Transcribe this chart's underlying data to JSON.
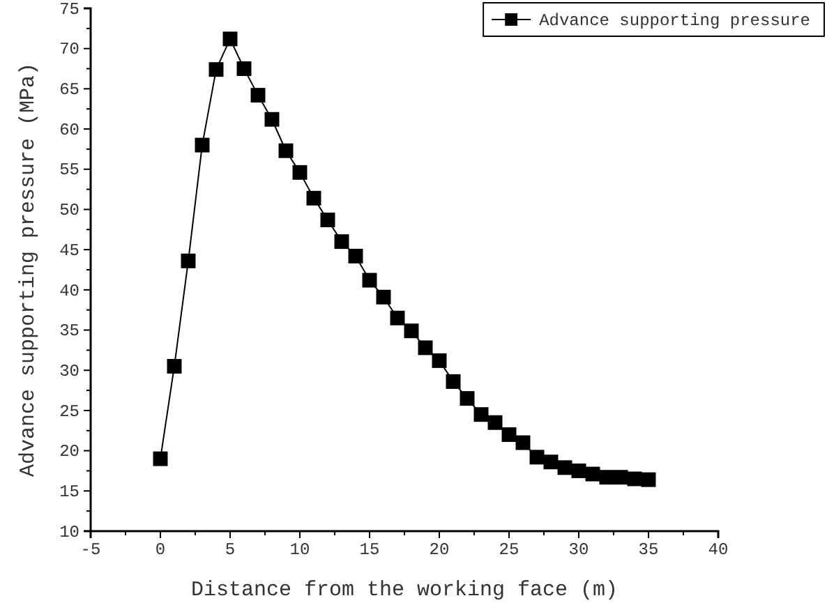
{
  "chart_data": {
    "type": "line",
    "xlabel": "Distance from the working face (m)",
    "ylabel": "Advance supporting pressure (MPa)",
    "x": [
      0,
      1,
      2,
      3,
      4,
      5,
      6,
      7,
      8,
      9,
      10,
      11,
      12,
      13,
      14,
      15,
      16,
      17,
      18,
      19,
      20,
      21,
      22,
      23,
      24,
      25,
      26,
      27,
      28,
      29,
      30,
      31,
      32,
      33,
      34,
      35
    ],
    "series": [
      {
        "name": "Advance supporting pressure",
        "color": "#000000",
        "values": [
          19,
          30.5,
          43.6,
          58,
          67.4,
          71.2,
          67.5,
          64.2,
          61.2,
          57.3,
          54.6,
          51.4,
          48.7,
          46,
          44.2,
          41.2,
          39.1,
          36.5,
          34.9,
          32.8,
          31.2,
          28.6,
          26.5,
          24.5,
          23.5,
          22,
          21,
          19.2,
          18.6,
          17.9,
          17.5,
          17.1,
          16.7,
          16.7,
          16.5,
          16.4
        ]
      }
    ],
    "xlim": [
      -5,
      40
    ],
    "xticks": [
      -5,
      0,
      5,
      10,
      15,
      20,
      25,
      30,
      35,
      40
    ],
    "ylim": [
      10,
      75
    ],
    "yticks": [
      10,
      15,
      20,
      25,
      30,
      35,
      40,
      45,
      50,
      55,
      60,
      65,
      70,
      75
    ],
    "marker": "square",
    "line_style": "solid",
    "legend": "top right",
    "grid": false
  }
}
